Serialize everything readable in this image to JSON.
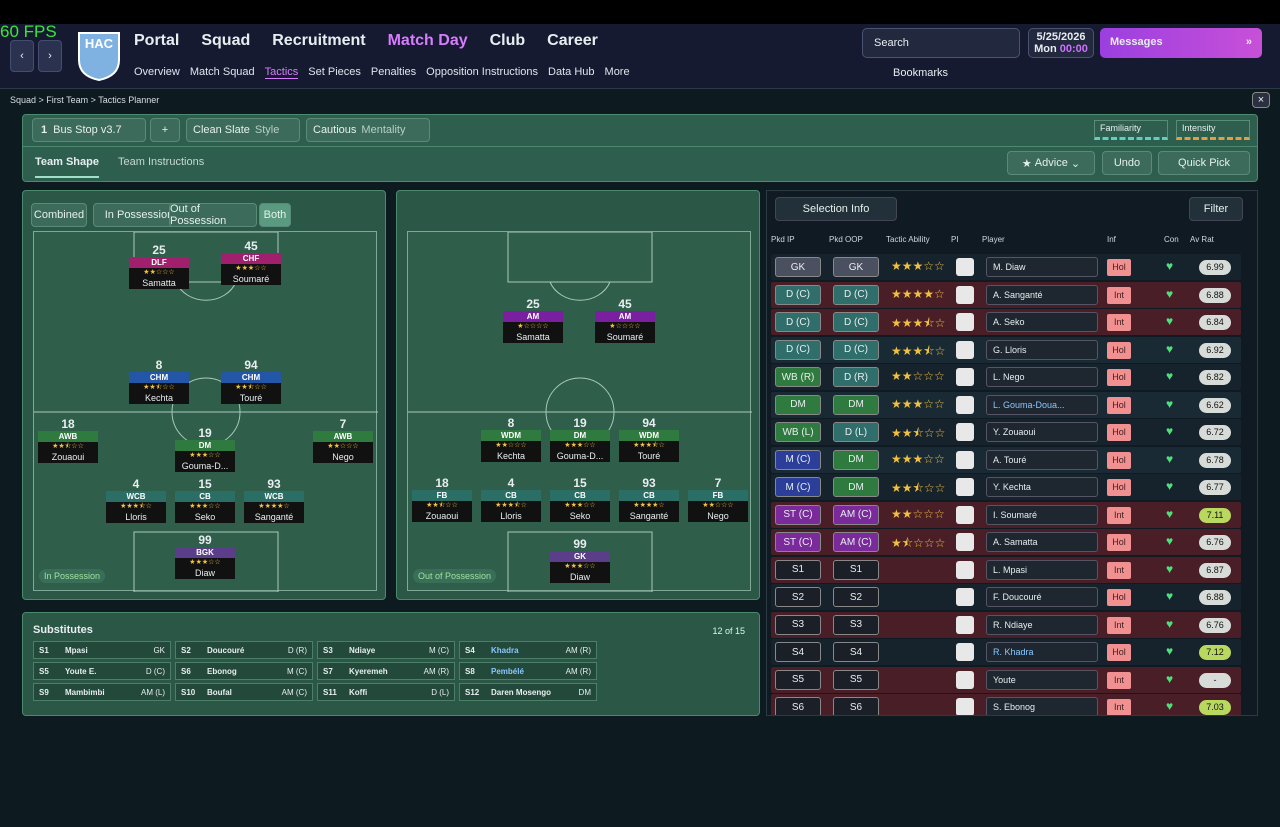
{
  "fps": "60 FPS",
  "header": {
    "club": "HAC",
    "menu": [
      "Portal",
      "Squad",
      "Recruitment",
      "Match Day",
      "Club",
      "Career"
    ],
    "submenu": [
      "Overview",
      "Match Squad",
      "Tactics",
      "Set Pieces",
      "Penalties",
      "Opposition Instructions",
      "Data Hub",
      "More"
    ],
    "search": "Search",
    "date": "5/25/2026",
    "day": "Mon",
    "time": "00:00",
    "messages": "Messages",
    "bookmarks": "Bookmarks"
  },
  "breadcrumb": [
    "Squad",
    "First Team",
    "Tactics Planner"
  ],
  "toolbar": {
    "slot": "1",
    "tactic": "Bus Stop v3.7",
    "add": "+",
    "style": "Clean Slate",
    "style_label": "Style",
    "mentality": "Cautious",
    "mentality_label": "Mentality",
    "familiarity": "Familiarity",
    "intensity": "Intensity",
    "tabs": [
      "Team Shape",
      "Team Instructions"
    ],
    "advice": "Advice",
    "undo": "Undo",
    "quick_pick": "Quick Pick"
  },
  "in_possession": {
    "modes": [
      "Combined",
      "In Possession",
      "Out of Possession",
      "Both"
    ],
    "label": "In Possession",
    "players": [
      {
        "number": 25,
        "role": "DLF",
        "stars": 2,
        "name": "Samatta"
      },
      {
        "number": 45,
        "role": "CHF",
        "stars": 3,
        "name": "Soumaré"
      },
      {
        "number": 8,
        "role": "CHM",
        "stars": 2.5,
        "name": "Kechta"
      },
      {
        "number": 94,
        "role": "CHM",
        "stars": 2.5,
        "name": "Touré"
      },
      {
        "number": 18,
        "role": "AWB",
        "stars": 2.5,
        "name": "Zouaoui"
      },
      {
        "number": 19,
        "role": "DM",
        "stars": 3,
        "name": "Gouma-D..."
      },
      {
        "number": 7,
        "role": "AWB",
        "stars": 2,
        "name": "Nego"
      },
      {
        "number": 4,
        "role": "WCB",
        "stars": 3.5,
        "name": "Lloris"
      },
      {
        "number": 15,
        "role": "CB",
        "stars": 3,
        "name": "Seko"
      },
      {
        "number": 93,
        "role": "WCB",
        "stars": 4,
        "name": "Sanganté"
      },
      {
        "number": 99,
        "role": "BGK",
        "stars": 3,
        "name": "Diaw"
      }
    ]
  },
  "out_of_possession": {
    "label": "Out of Possession",
    "players": [
      {
        "number": 25,
        "role": "AM",
        "stars": 1,
        "name": "Samatta"
      },
      {
        "number": 45,
        "role": "AM",
        "stars": 1,
        "name": "Soumaré"
      },
      {
        "number": 8,
        "role": "WDM",
        "stars": 2,
        "name": "Kechta"
      },
      {
        "number": 19,
        "role": "DM",
        "stars": 3,
        "name": "Gouma-D..."
      },
      {
        "number": 94,
        "role": "WDM",
        "stars": 3.5,
        "name": "Touré"
      },
      {
        "number": 18,
        "role": "FB",
        "stars": 2.5,
        "name": "Zouaoui"
      },
      {
        "number": 4,
        "role": "CB",
        "stars": 3.5,
        "name": "Lloris"
      },
      {
        "number": 15,
        "role": "CB",
        "stars": 3,
        "name": "Seko"
      },
      {
        "number": 93,
        "role": "CB",
        "stars": 4,
        "name": "Sanganté"
      },
      {
        "number": 7,
        "role": "FB",
        "stars": 2,
        "name": "Nego"
      },
      {
        "number": 99,
        "role": "GK",
        "stars": 3,
        "name": "Diaw"
      }
    ]
  },
  "substitutes": {
    "title": "Substitutes",
    "count": "12 of 15",
    "players": [
      {
        "slot": "S1",
        "name": "Mpasi",
        "position": "GK"
      },
      {
        "slot": "S2",
        "name": "Doucouré",
        "position": "D (R)"
      },
      {
        "slot": "S3",
        "name": "Ndiaye",
        "position": "M (C)"
      },
      {
        "slot": "S4",
        "name": "Khadra",
        "position": "AM (R)"
      },
      {
        "slot": "S5",
        "name": "Youte E.",
        "position": "D (C)"
      },
      {
        "slot": "S6",
        "name": "Ebonog",
        "position": "M (C)"
      },
      {
        "slot": "S7",
        "name": "Kyeremeh",
        "position": "AM (R)"
      },
      {
        "slot": "S8",
        "name": "Pembélé",
        "position": "AM (R)"
      },
      {
        "slot": "S9",
        "name": "Mambimbi",
        "position": "AM (L)"
      },
      {
        "slot": "S10",
        "name": "Boufal",
        "position": "AM (C)"
      },
      {
        "slot": "S11",
        "name": "Koffi",
        "position": "D (L)"
      },
      {
        "slot": "S12",
        "name": "Daren Mosengo",
        "position": "DM"
      }
    ]
  },
  "selection": {
    "title": "Selection Info",
    "filter": "Filter",
    "columns": [
      "Pkd IP",
      "Pkd OOP",
      "Tactic Ability",
      "PI",
      "Player",
      "Inf",
      "Con",
      "Av Rat"
    ],
    "rows": [
      {
        "ip": "GK",
        "oop": "GK",
        "stars": 3,
        "player": "M. Diaw",
        "inf": "Hol",
        "rating": "6.99"
      },
      {
        "ip": "D (C)",
        "oop": "D (C)",
        "stars": 4,
        "player": "A. Sanganté",
        "inf": "Int",
        "rating": "6.88"
      },
      {
        "ip": "D (C)",
        "oop": "D (C)",
        "stars": 3.5,
        "player": "A. Seko",
        "inf": "Int",
        "rating": "6.84"
      },
      {
        "ip": "D (C)",
        "oop": "D (C)",
        "stars": 3.5,
        "player": "G. Lloris",
        "inf": "Hol",
        "rating": "6.92"
      },
      {
        "ip": "WB (R)",
        "oop": "D (R)",
        "stars": 2,
        "player": "L. Nego",
        "inf": "Hol",
        "rating": "6.82"
      },
      {
        "ip": "DM",
        "oop": "DM",
        "stars": 3,
        "player": "L. Gouma-Doua...",
        "inf": "Hol",
        "rating": "6.62"
      },
      {
        "ip": "WB (L)",
        "oop": "D (L)",
        "stars": 2.5,
        "player": "Y. Zouaoui",
        "inf": "Hol",
        "rating": "6.72"
      },
      {
        "ip": "M (C)",
        "oop": "DM",
        "stars": 3,
        "player": "A. Touré",
        "inf": "Hol",
        "rating": "6.78"
      },
      {
        "ip": "M (C)",
        "oop": "DM",
        "stars": 2.5,
        "player": "Y. Kechta",
        "inf": "Hol",
        "rating": "6.77"
      },
      {
        "ip": "ST (C)",
        "oop": "AM (C)",
        "stars": 2,
        "player": "I. Soumaré",
        "inf": "Int",
        "rating": "7.11"
      },
      {
        "ip": "ST (C)",
        "oop": "AM (C)",
        "stars": 1.5,
        "player": "A. Samatta",
        "inf": "Hol",
        "rating": "6.76"
      },
      {
        "ip": "S1",
        "oop": "S1",
        "player": "L. Mpasi",
        "inf": "Int",
        "rating": "6.87"
      },
      {
        "ip": "S2",
        "oop": "S2",
        "player": "F. Doucouré",
        "inf": "Hol",
        "rating": "6.88"
      },
      {
        "ip": "S3",
        "oop": "S3",
        "player": "R. Ndiaye",
        "inf": "Int",
        "rating": "6.76"
      },
      {
        "ip": "S4",
        "oop": "S4",
        "player": "R. Khadra",
        "inf": "Hol",
        "rating": "7.12"
      },
      {
        "ip": "S5",
        "oop": "S5",
        "player": "Youte",
        "inf": "Int",
        "rating": "-"
      },
      {
        "ip": "S6",
        "oop": "S6",
        "player": "S. Ebonog",
        "inf": "Int",
        "rating": "7.03"
      }
    ]
  }
}
